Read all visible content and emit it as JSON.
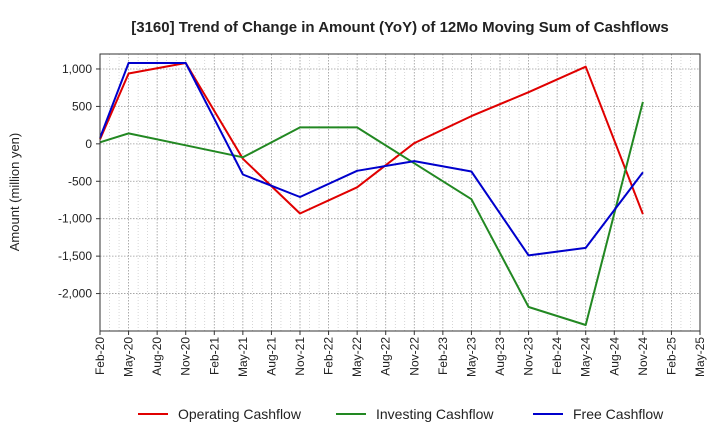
{
  "chart_data": {
    "type": "line",
    "title": "[3160]  Trend of Change in Amount (YoY) of 12Mo Moving Sum of Cashflows",
    "xlabel": "",
    "ylabel": "Amount (million yen)",
    "categories": [
      "Feb-20",
      "May-20",
      "Aug-20",
      "Nov-20",
      "Feb-21",
      "May-21",
      "Aug-21",
      "Nov-21",
      "Feb-22",
      "May-22",
      "Aug-22",
      "Nov-22",
      "Feb-23",
      "May-23",
      "Aug-23",
      "Nov-23",
      "Feb-24",
      "May-24",
      "Aug-24",
      "Nov-24",
      "Feb-25",
      "May-25"
    ],
    "ylim": [
      -2500,
      1200
    ],
    "yticks": [
      1000,
      500,
      0,
      -500,
      -1000,
      -1500,
      -2000
    ],
    "ytick_labels": [
      "1,000",
      "500",
      "0",
      "-500",
      "-1,000",
      "-1,500",
      "-2,000"
    ],
    "grid": true,
    "legend_position": "bottom",
    "series": [
      {
        "name": "Operating Cashflow",
        "color": "#e00000",
        "points": [
          [
            0,
            60
          ],
          [
            1,
            940
          ],
          [
            3,
            1080
          ],
          [
            5,
            -200
          ],
          [
            7,
            -930
          ],
          [
            9,
            -580
          ],
          [
            11,
            10
          ],
          [
            13,
            370
          ],
          [
            15,
            690
          ],
          [
            17,
            1030
          ],
          [
            19,
            -940
          ]
        ]
      },
      {
        "name": "Investing Cashflow",
        "color": "#228822",
        "points": [
          [
            0,
            20
          ],
          [
            1,
            140
          ],
          [
            3,
            -20
          ],
          [
            5,
            -180
          ],
          [
            7,
            220
          ],
          [
            9,
            220
          ],
          [
            11,
            -260
          ],
          [
            13,
            -740
          ],
          [
            15,
            -2180
          ],
          [
            17,
            -2420
          ],
          [
            19,
            560
          ]
        ]
      },
      {
        "name": "Free Cashflow",
        "color": "#0000cc",
        "points": [
          [
            0,
            80
          ],
          [
            1,
            1080
          ],
          [
            3,
            1080
          ],
          [
            5,
            -410
          ],
          [
            7,
            -710
          ],
          [
            9,
            -360
          ],
          [
            11,
            -230
          ],
          [
            13,
            -370
          ],
          [
            15,
            -1490
          ],
          [
            17,
            -1390
          ],
          [
            19,
            -380
          ]
        ]
      }
    ]
  }
}
